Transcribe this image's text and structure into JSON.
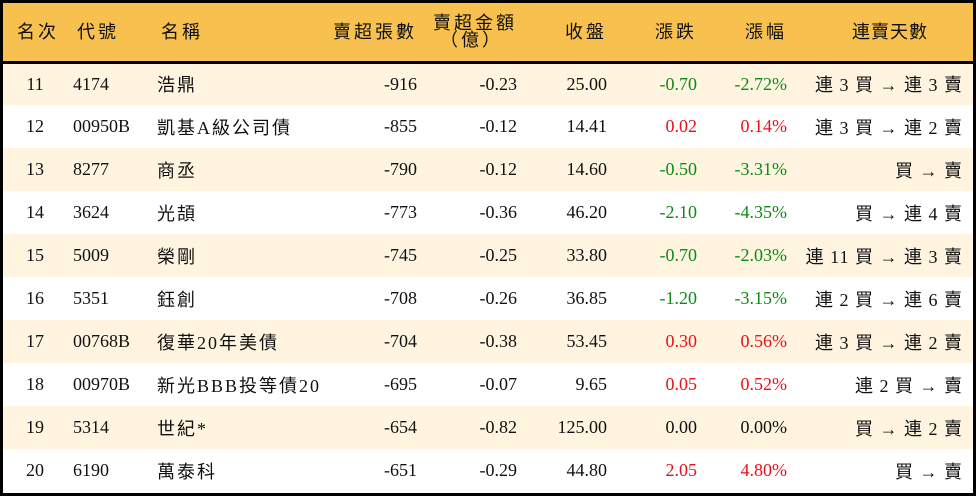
{
  "colors": {
    "header_bg": "#F8C04E",
    "row_odd_bg": "#FEF4E0",
    "row_even_bg": "#FFFFFF",
    "border": "#000000",
    "up": "#E8101A",
    "down": "#0E8A16",
    "flat": "#111111"
  },
  "table": {
    "headers": {
      "rank": "名次",
      "code": "代號",
      "name": "名稱",
      "net_sell_lots": "賣超張數",
      "net_sell_amount_line1": "賣超金額",
      "net_sell_amount_line2": "（億）",
      "close": "收盤",
      "change": "漲跌",
      "change_pct": "漲幅",
      "consecutive_days": "連賣天數"
    },
    "rows": [
      {
        "rank": "11",
        "code": "4174",
        "name": "浩鼎",
        "net_sell_lots": "-916",
        "net_sell_amount": "-0.23",
        "close": "25.00",
        "change": "-0.70",
        "change_pct": "-2.72%",
        "direction": "down",
        "consecutive_days": "連 3 買 → 連 3 賣"
      },
      {
        "rank": "12",
        "code": "00950B",
        "name": "凱基A級公司債",
        "net_sell_lots": "-855",
        "net_sell_amount": "-0.12",
        "close": "14.41",
        "change": "0.02",
        "change_pct": "0.14%",
        "direction": "up",
        "consecutive_days": "連 3 買 → 連 2 賣"
      },
      {
        "rank": "13",
        "code": "8277",
        "name": "商丞",
        "net_sell_lots": "-790",
        "net_sell_amount": "-0.12",
        "close": "14.60",
        "change": "-0.50",
        "change_pct": "-3.31%",
        "direction": "down",
        "consecutive_days": "買 → 賣"
      },
      {
        "rank": "14",
        "code": "3624",
        "name": "光頡",
        "net_sell_lots": "-773",
        "net_sell_amount": "-0.36",
        "close": "46.20",
        "change": "-2.10",
        "change_pct": "-4.35%",
        "direction": "down",
        "consecutive_days": "買 → 連 4 賣"
      },
      {
        "rank": "15",
        "code": "5009",
        "name": "榮剛",
        "net_sell_lots": "-745",
        "net_sell_amount": "-0.25",
        "close": "33.80",
        "change": "-0.70",
        "change_pct": "-2.03%",
        "direction": "down",
        "consecutive_days": "連 11 買 → 連 3 賣"
      },
      {
        "rank": "16",
        "code": "5351",
        "name": "鈺創",
        "net_sell_lots": "-708",
        "net_sell_amount": "-0.26",
        "close": "36.85",
        "change": "-1.20",
        "change_pct": "-3.15%",
        "direction": "down",
        "consecutive_days": "連 2 買 → 連 6 賣"
      },
      {
        "rank": "17",
        "code": "00768B",
        "name": "復華20年美債",
        "net_sell_lots": "-704",
        "net_sell_amount": "-0.38",
        "close": "53.45",
        "change": "0.30",
        "change_pct": "0.56%",
        "direction": "up",
        "consecutive_days": "連 3 買 → 連 2 賣"
      },
      {
        "rank": "18",
        "code": "00970B",
        "name": "新光BBB投等債20",
        "net_sell_lots": "-695",
        "net_sell_amount": "-0.07",
        "close": "9.65",
        "change": "0.05",
        "change_pct": "0.52%",
        "direction": "up",
        "consecutive_days": "連 2 買 → 賣"
      },
      {
        "rank": "19",
        "code": "5314",
        "name": "世紀*",
        "net_sell_lots": "-654",
        "net_sell_amount": "-0.82",
        "close": "125.00",
        "change": "0.00",
        "change_pct": "0.00%",
        "direction": "flat",
        "consecutive_days": "買 → 連 2 賣"
      },
      {
        "rank": "20",
        "code": "6190",
        "name": "萬泰科",
        "net_sell_lots": "-651",
        "net_sell_amount": "-0.29",
        "close": "44.80",
        "change": "2.05",
        "change_pct": "4.80%",
        "direction": "up",
        "consecutive_days": "買 → 賣"
      }
    ]
  }
}
